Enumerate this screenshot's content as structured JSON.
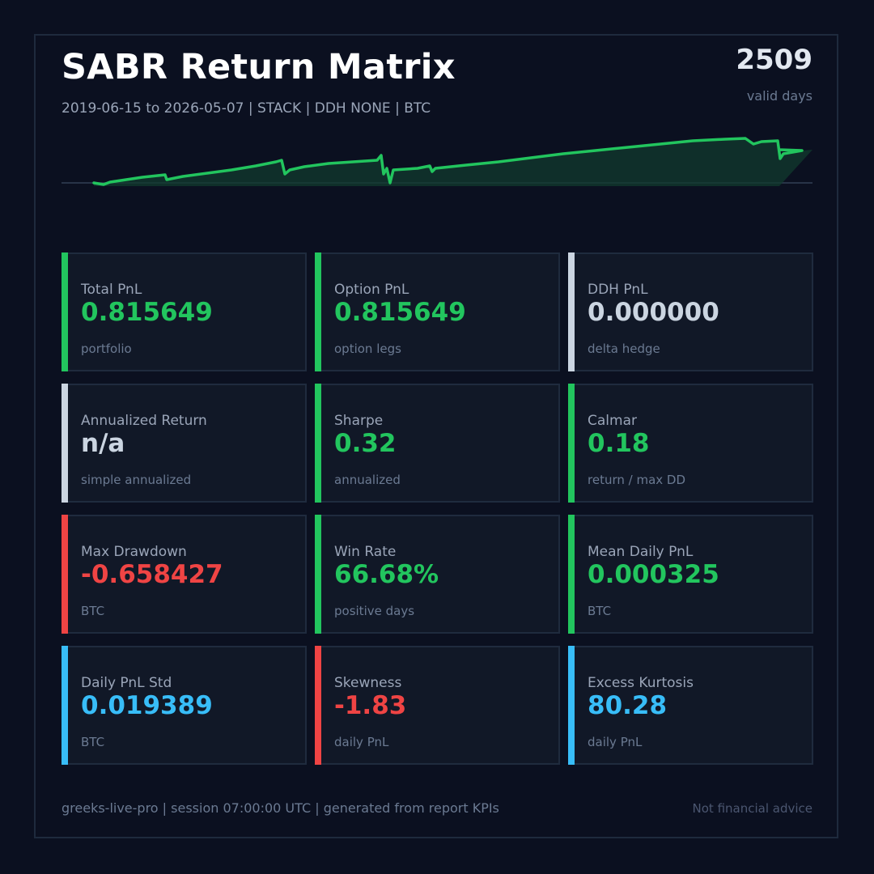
{
  "header": {
    "title": "SABR Return Matrix",
    "subtitle": "2019-06-15 to 2026-05-07  |  STACK  |  DDH NONE  |  BTC",
    "days_value": "2509",
    "days_label": "valid days"
  },
  "colors": {
    "background": "#0b1020",
    "card": "#111827",
    "green": "#22c55e",
    "red": "#ef4444",
    "blue": "#38bdf8",
    "neutral": "#cbd5e1"
  },
  "cards": [
    {
      "label": "Total PnL",
      "value": "0.815649",
      "sub": "portfolio",
      "tone": "green"
    },
    {
      "label": "Option PnL",
      "value": "0.815649",
      "sub": "option legs",
      "tone": "green"
    },
    {
      "label": "DDH PnL",
      "value": "0.000000",
      "sub": "delta hedge",
      "tone": "neutral"
    },
    {
      "label": "Annualized Return",
      "value": "n/a",
      "sub": "simple annualized",
      "tone": "neutral"
    },
    {
      "label": "Sharpe",
      "value": "0.32",
      "sub": "annualized",
      "tone": "green"
    },
    {
      "label": "Calmar",
      "value": "0.18",
      "sub": "return / max DD",
      "tone": "green"
    },
    {
      "label": "Max Drawdown",
      "value": "-0.658427",
      "sub": "BTC",
      "tone": "red"
    },
    {
      "label": "Win Rate",
      "value": "66.68%",
      "sub": "positive days",
      "tone": "green"
    },
    {
      "label": "Mean Daily PnL",
      "value": "0.000325",
      "sub": "BTC",
      "tone": "green"
    },
    {
      "label": "Daily PnL Std",
      "value": "0.019389",
      "sub": "BTC",
      "tone": "blue"
    },
    {
      "label": "Skewness",
      "value": "-1.83",
      "sub": "daily PnL",
      "tone": "red"
    },
    {
      "label": "Excess Kurtosis",
      "value": "80.28",
      "sub": "daily PnL",
      "tone": "blue"
    }
  ],
  "footer": {
    "left": "greeks-live-pro  |  session 07:00:00 UTC  |  generated from report KPIs",
    "right": "Not financial advice"
  }
}
